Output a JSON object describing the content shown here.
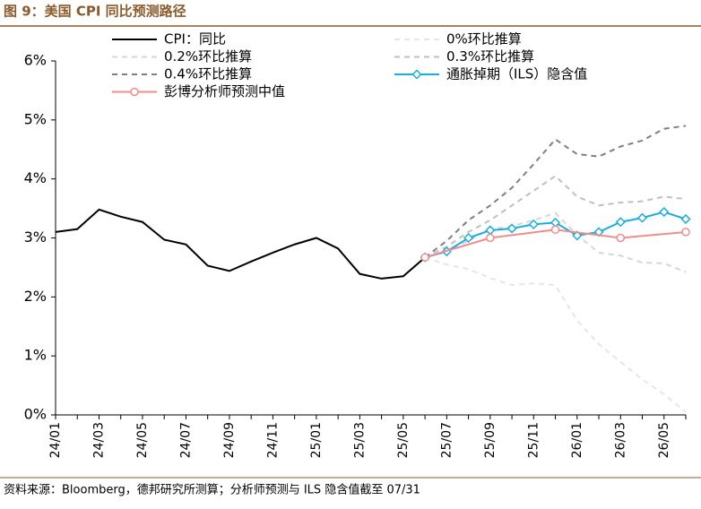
{
  "chart_data": {
    "type": "line",
    "title": "图 9：美国 CPI 同比预测路径",
    "source": "资料来源：Bloomberg，德邦研究所测算；分析师预测与 ILS 隐含值截至 07/31",
    "categories": [
      "24/01",
      null,
      "24/03",
      null,
      "24/05",
      null,
      "24/07",
      null,
      "24/09",
      null,
      "24/11",
      null,
      "25/01",
      null,
      "25/03",
      null,
      "25/05",
      null,
      "25/07",
      null,
      "25/09",
      null,
      "25/11",
      null,
      "26/01",
      null,
      "26/03",
      null,
      "26/05",
      null
    ],
    "ylim": [
      0,
      6
    ],
    "yticks": [
      {
        "value": 0,
        "label": "0%"
      },
      {
        "value": 1,
        "label": "1%"
      },
      {
        "value": 2,
        "label": "2%"
      },
      {
        "value": 3,
        "label": "3%"
      },
      {
        "value": 4,
        "label": "4%"
      },
      {
        "value": 5,
        "label": "5%"
      },
      {
        "value": 6,
        "label": "6%"
      }
    ],
    "series": [
      {
        "name": "CPI：同比",
        "color": "#000000",
        "dash": "none",
        "values": [
          3.1,
          3.15,
          3.48,
          3.36,
          3.27,
          2.97,
          2.89,
          2.53,
          2.44,
          2.6,
          2.75,
          2.89,
          3.0,
          2.82,
          2.39,
          2.31,
          2.35,
          2.67,
          null,
          null,
          null,
          null,
          null,
          null,
          null,
          null,
          null,
          null,
          null,
          null
        ]
      },
      {
        "name": "0%环比推算",
        "color": "#e6e6e6",
        "dash": "6 5",
        "values": [
          null,
          null,
          null,
          null,
          null,
          null,
          null,
          null,
          null,
          null,
          null,
          null,
          null,
          null,
          null,
          null,
          null,
          2.67,
          2.55,
          2.47,
          2.32,
          2.2,
          2.23,
          2.2,
          1.6,
          1.2,
          0.9,
          0.6,
          0.35,
          0.05
        ]
      },
      {
        "name": "0.2%环比推算",
        "color": "#d6d6d6",
        "dash": "6 5",
        "values": [
          null,
          null,
          null,
          null,
          null,
          null,
          null,
          null,
          null,
          null,
          null,
          null,
          null,
          null,
          null,
          null,
          null,
          2.67,
          2.78,
          2.95,
          3.15,
          3.2,
          3.3,
          3.42,
          3.05,
          2.75,
          2.7,
          2.58,
          2.57,
          2.42
        ]
      },
      {
        "name": "0.3%环比推算",
        "color": "#bfbfbf",
        "dash": "6 5",
        "values": [
          null,
          null,
          null,
          null,
          null,
          null,
          null,
          null,
          null,
          null,
          null,
          null,
          null,
          null,
          null,
          null,
          null,
          2.67,
          2.85,
          3.1,
          3.3,
          3.55,
          3.8,
          4.05,
          3.7,
          3.55,
          3.6,
          3.62,
          3.7,
          3.66
        ]
      },
      {
        "name": "0.4%环比推算",
        "color": "#7f7f7f",
        "dash": "6 5",
        "values": [
          null,
          null,
          null,
          null,
          null,
          null,
          null,
          null,
          null,
          null,
          null,
          null,
          null,
          null,
          null,
          null,
          null,
          2.67,
          2.95,
          3.3,
          3.55,
          3.85,
          4.25,
          4.67,
          4.42,
          4.38,
          4.55,
          4.65,
          4.85,
          4.9
        ]
      },
      {
        "name": "通胀掉期（ILS）隐含值",
        "color": "#1aaee0",
        "dash": "none",
        "marker": "diamond",
        "values": [
          null,
          null,
          null,
          null,
          null,
          null,
          null,
          null,
          null,
          null,
          null,
          null,
          null,
          null,
          null,
          null,
          null,
          2.67,
          2.77,
          3.0,
          3.13,
          3.16,
          3.23,
          3.26,
          3.04,
          3.1,
          3.27,
          3.34,
          3.44,
          3.32
        ]
      },
      {
        "name": "彭博分析师预测中值",
        "color": "#f08c8c",
        "dash": "none",
        "marker": "circle",
        "connect_gaps": true,
        "values": [
          null,
          null,
          null,
          null,
          null,
          null,
          null,
          null,
          null,
          null,
          null,
          null,
          null,
          null,
          null,
          null,
          null,
          2.67,
          null,
          null,
          3.0,
          null,
          null,
          3.14,
          null,
          null,
          3.0,
          null,
          null,
          3.1
        ]
      }
    ]
  }
}
